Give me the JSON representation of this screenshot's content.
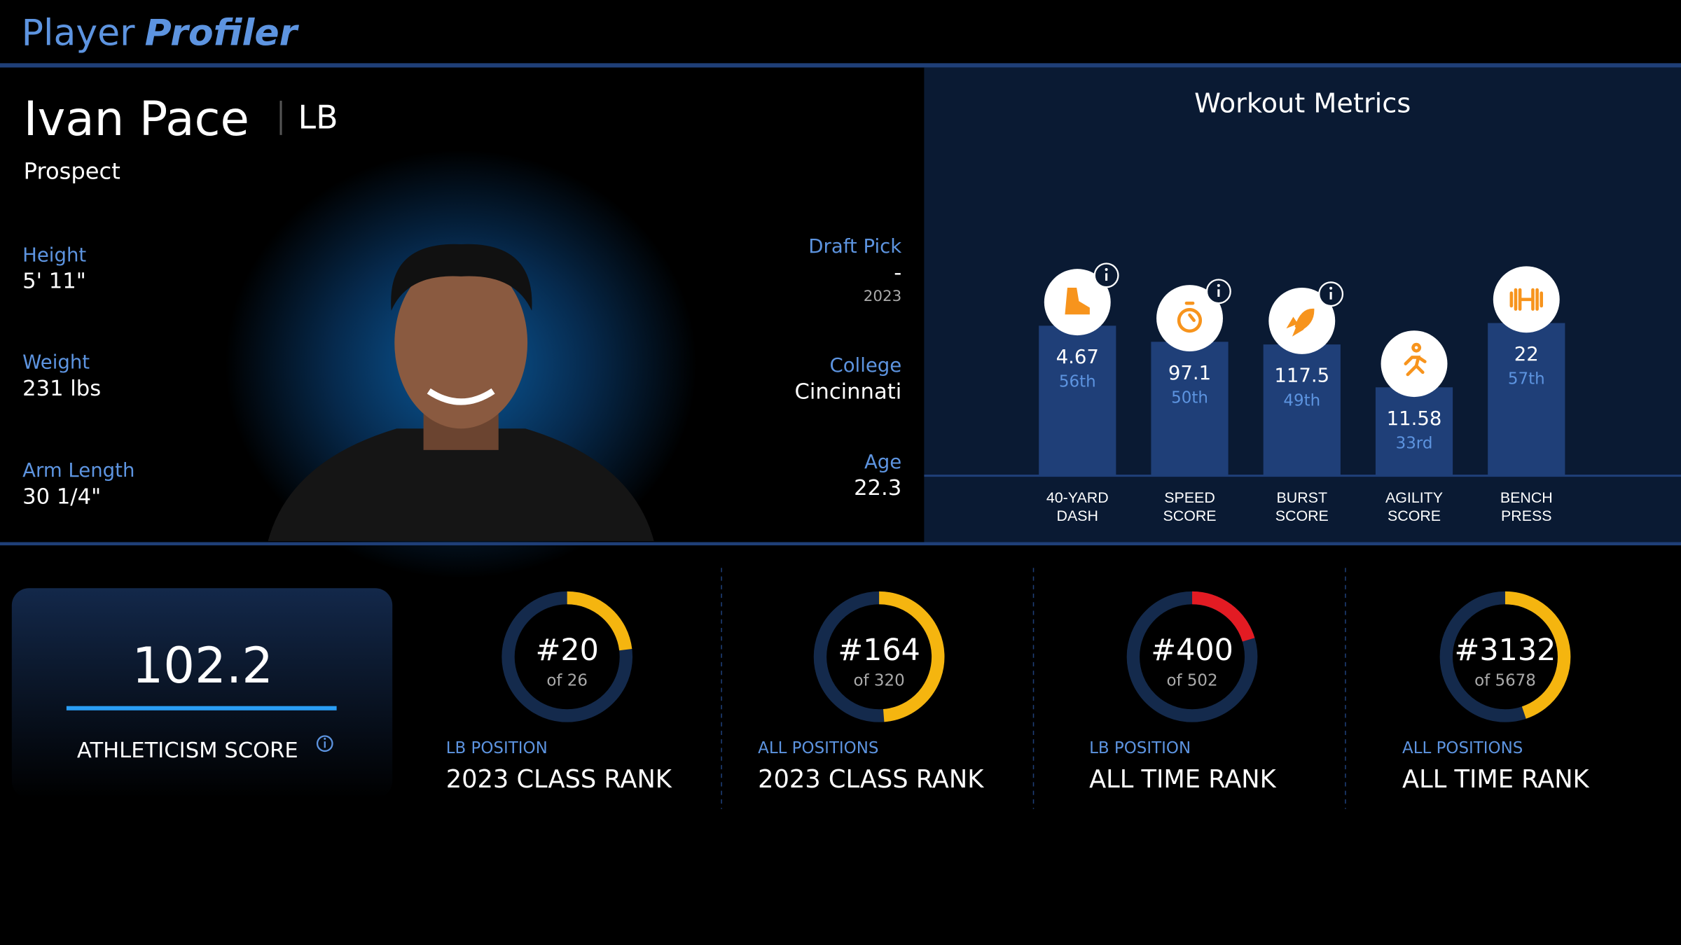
{
  "header": {
    "logo_light": "Player",
    "logo_bold": "Profiler"
  },
  "player": {
    "name": "Ivan Pace",
    "position": "LB",
    "status": "Prospect",
    "left_details": [
      {
        "label": "Height",
        "value": "5' 11\""
      },
      {
        "label": "Weight",
        "value": "231 lbs"
      },
      {
        "label": "Arm Length",
        "value": "30 1/4\""
      }
    ],
    "right_details": [
      {
        "label": "Draft Pick",
        "value": "-",
        "note": "2023"
      },
      {
        "label": "College",
        "value": "Cincinnati"
      },
      {
        "label": "Age",
        "value": 22.3
      }
    ]
  },
  "workout": {
    "title": "Workout Metrics",
    "metrics": [
      {
        "label_lines": [
          "40-YARD",
          "DASH"
        ],
        "value": 4.67,
        "percentile": 56,
        "percentile_label": "56th",
        "info": true,
        "icon": "shoe"
      },
      {
        "label_lines": [
          "SPEED",
          "SCORE"
        ],
        "value": 97.1,
        "percentile": 50,
        "percentile_label": "50th",
        "info": true,
        "icon": "timer"
      },
      {
        "label_lines": [
          "BURST",
          "SCORE"
        ],
        "value": 117.5,
        "percentile": 49,
        "percentile_label": "49th",
        "info": true,
        "icon": "rocket"
      },
      {
        "label_lines": [
          "AGILITY",
          "SCORE"
        ],
        "value": 11.58,
        "percentile": 33,
        "percentile_label": "33rd",
        "info": false,
        "icon": "runner"
      },
      {
        "label_lines": [
          "BENCH",
          "PRESS"
        ],
        "value": 22,
        "percentile": 57,
        "percentile_label": "57th",
        "info": false,
        "icon": "barbell"
      }
    ]
  },
  "athleticism": {
    "score": 102.2,
    "label": "ATHLETICISM SCORE"
  },
  "ranks": [
    {
      "rank": 20,
      "rank_label": "#20",
      "total": 26,
      "total_label": "of 26",
      "subtitle": "LB POSITION",
      "title": "2023 CLASS RANK",
      "color": "#f5b50f"
    },
    {
      "rank": 164,
      "rank_label": "#164",
      "total": 320,
      "total_label": "of 320",
      "subtitle": "ALL POSITIONS",
      "title": "2023 CLASS RANK",
      "color": "#f5b50f"
    },
    {
      "rank": 400,
      "rank_label": "#400",
      "total": 502,
      "total_label": "of 502",
      "subtitle": "LB POSITION",
      "title": "ALL TIME RANK",
      "color": "#e31b23"
    },
    {
      "rank": 3132,
      "rank_label": "#3132",
      "total": 5678,
      "total_label": "of 5678",
      "subtitle": "ALL POSITIONS",
      "title": "ALL TIME RANK",
      "color": "#f5b50f"
    }
  ]
}
